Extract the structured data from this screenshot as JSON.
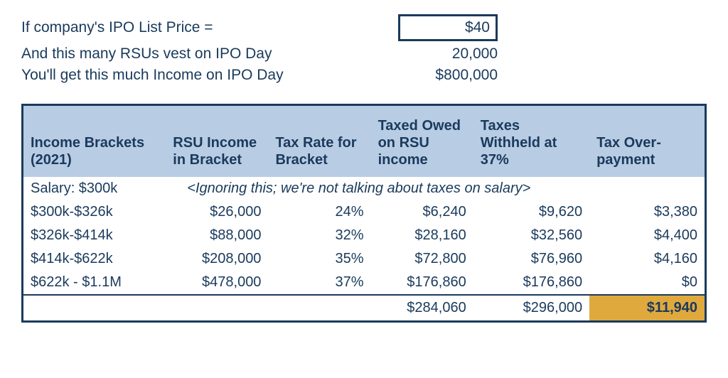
{
  "inputs": {
    "price_label": "If company's IPO List Price =",
    "price_value": "$40",
    "rsu_label": "And this many RSUs vest on IPO Day",
    "rsu_value": "20,000",
    "income_label": "You'll get this much Income on IPO Day",
    "income_value": "$800,000"
  },
  "table": {
    "headers": {
      "brackets": "Income Brackets (2021)",
      "rsu_income": "RSU Income in Bracket",
      "tax_rate": "Tax Rate for Bracket",
      "tax_owed": "Taxed Owed on RSU income",
      "withheld": "Taxes Withheld at 37%",
      "overpayment": "Tax Over-payment"
    },
    "salary_row": {
      "label": "Salary: $300k",
      "note": "<Ignoring this; we're not talking about taxes on salary>"
    },
    "rows": [
      {
        "bracket": "$300k-$326k",
        "rsu": "$26,000",
        "rate": "24%",
        "owed": "$6,240",
        "withheld": "$9,620",
        "over": "$3,380"
      },
      {
        "bracket": "$326k-$414k",
        "rsu": "$88,000",
        "rate": "32%",
        "owed": "$28,160",
        "withheld": "$32,560",
        "over": "$4,400"
      },
      {
        "bracket": "$414k-$622k",
        "rsu": "$208,000",
        "rate": "35%",
        "owed": "$72,800",
        "withheld": "$76,960",
        "over": "$4,160"
      },
      {
        "bracket": "$622k - $1.1M",
        "rsu": "$478,000",
        "rate": "37%",
        "owed": "$176,860",
        "withheld": "$176,860",
        "over": "$0"
      }
    ],
    "totals": {
      "owed": "$284,060",
      "withheld": "$296,000",
      "over": "$11,940"
    }
  },
  "colors": {
    "text": "#1a3a5c",
    "header_bg": "#b8cce4",
    "highlight_bg": "#e0a93e",
    "border": "#1a3a5c",
    "background": "#ffffff"
  }
}
